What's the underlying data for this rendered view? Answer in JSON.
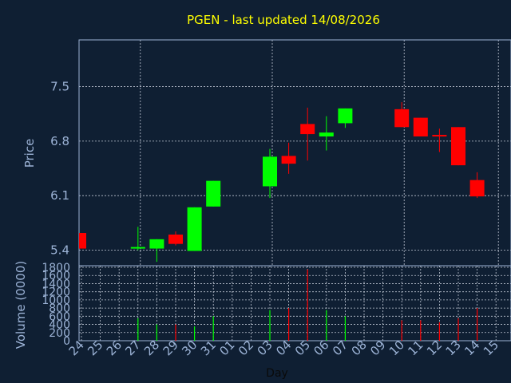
{
  "chart_data": {
    "type": "candlestick",
    "title": "PGEN - last updated 14/08/2026",
    "xlabel": "Day",
    "ylabel": "Price",
    "volume_label": "Volume (0000)",
    "price_ticks": [
      "7.5",
      "6.8",
      "6.1",
      "5.4"
    ],
    "price_tick_values": [
      7.5,
      6.8,
      6.1,
      5.4
    ],
    "ylim": [
      5.2,
      8.1
    ],
    "volume_ticks": [
      "1800",
      "1600",
      "1400",
      "1200",
      "1000",
      "800",
      "600",
      "400",
      "200",
      "0"
    ],
    "volume_tick_values": [
      1800,
      1600,
      1400,
      1200,
      1000,
      800,
      600,
      400,
      200,
      0
    ],
    "volume_ylim": [
      0,
      1800
    ],
    "days": [
      "24",
      "25",
      "26",
      "27",
      "28",
      "29",
      "30",
      "31",
      "01",
      "02",
      "03",
      "04",
      "05",
      "06",
      "07",
      "08",
      "09",
      "10",
      "11",
      "12",
      "13",
      "14",
      "15"
    ],
    "candles": [
      {
        "day": "24",
        "open": 5.62,
        "close": 5.42,
        "high": 5.62,
        "low": 5.42,
        "volume": 0
      },
      {
        "day": "27",
        "open": 5.42,
        "close": 5.44,
        "high": 5.7,
        "low": 5.4,
        "volume": 550
      },
      {
        "day": "28",
        "open": 5.42,
        "close": 5.54,
        "high": 5.54,
        "low": 5.25,
        "volume": 400
      },
      {
        "day": "29",
        "open": 5.6,
        "close": 5.48,
        "high": 5.64,
        "low": 5.46,
        "volume": 400
      },
      {
        "day": "30",
        "open": 5.39,
        "close": 5.95,
        "high": 5.95,
        "low": 5.39,
        "volume": 350
      },
      {
        "day": "31",
        "open": 5.96,
        "close": 6.29,
        "high": 6.29,
        "low": 5.96,
        "volume": 600
      },
      {
        "day": "03",
        "open": 6.22,
        "close": 6.6,
        "high": 6.7,
        "low": 6.07,
        "volume": 750
      },
      {
        "day": "04",
        "open": 6.61,
        "close": 6.51,
        "high": 6.78,
        "low": 6.38,
        "volume": 800
      },
      {
        "day": "05",
        "open": 7.02,
        "close": 6.89,
        "high": 7.23,
        "low": 6.55,
        "volume": 1750
      },
      {
        "day": "06",
        "open": 6.86,
        "close": 6.91,
        "high": 7.12,
        "low": 6.68,
        "volume": 750
      },
      {
        "day": "07",
        "open": 7.03,
        "close": 7.22,
        "high": 7.22,
        "low": 6.97,
        "volume": 600
      },
      {
        "day": "10",
        "open": 7.21,
        "close": 6.98,
        "high": 7.3,
        "low": 6.98,
        "volume": 500
      },
      {
        "day": "11",
        "open": 7.1,
        "close": 6.86,
        "high": 7.1,
        "low": 6.86,
        "volume": 500
      },
      {
        "day": "12",
        "open": 6.88,
        "close": 6.86,
        "high": 6.96,
        "low": 6.66,
        "volume": 450
      },
      {
        "day": "13",
        "open": 6.98,
        "close": 6.49,
        "high": 6.98,
        "low": 6.49,
        "volume": 550
      },
      {
        "day": "14",
        "open": 6.3,
        "close": 6.09,
        "high": 6.4,
        "low": 6.07,
        "volume": 800
      }
    ],
    "grid": true,
    "colors": {
      "background": "#0f1f33",
      "up": "#00ff00",
      "down": "#ff0000",
      "title": "#ffff00",
      "axis_text": "#9cb3d6",
      "grid": "#c0c8d4"
    }
  }
}
